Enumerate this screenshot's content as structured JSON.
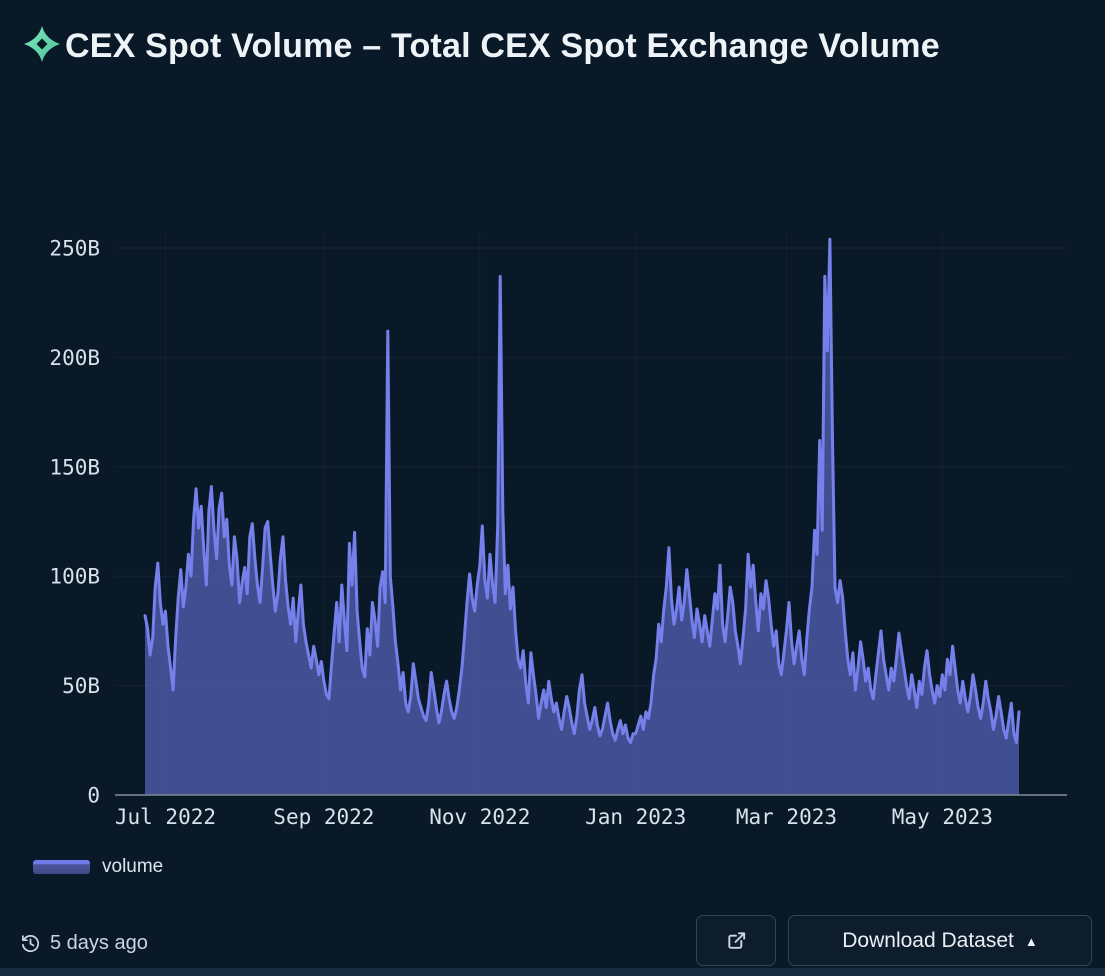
{
  "header": {
    "title": "CEX Spot Volume – Total CEX Spot Exchange Volume",
    "icon": "artemis-star-icon"
  },
  "colors": {
    "background": "#0a1928",
    "line": "#7680ea",
    "area_fill": "rgba(112,122,232,0.55)",
    "grid": "rgba(148,163,184,0.08)",
    "axis_line": "#76808c",
    "tick_text": "#d9e1ea",
    "title_text": "#eef3f8",
    "brand_green": "#5cd6a3",
    "button_border": "#31445b"
  },
  "chart_data": {
    "type": "area",
    "title": "CEX Spot Volume – Total CEX Spot Exchange Volume",
    "xlabel": "",
    "ylabel": "",
    "unit": "billions USD",
    "grid": true,
    "legend_position": "bottom-left",
    "ylim": [
      0,
      262
    ],
    "y_axis": {
      "labels": [
        "250B",
        "200B",
        "150B",
        "100B",
        "50B",
        "0"
      ],
      "values": [
        250,
        200,
        150,
        100,
        50,
        0
      ]
    },
    "x_axis": {
      "labels": [
        "Jul 2022",
        "Sep 2022",
        "Nov 2022",
        "Jan 2023",
        "Mar 2023",
        "May 2023"
      ],
      "tick_day_offsets": [
        8,
        70,
        131,
        192,
        251,
        312
      ]
    },
    "series": [
      {
        "name": "volume",
        "start_date": "2022-06-23",
        "frequency": "daily",
        "values": [
          82,
          76,
          64,
          72,
          95,
          106,
          88,
          78,
          84,
          68,
          58,
          48,
          72,
          90,
          103,
          86,
          95,
          110,
          100,
          126,
          140,
          122,
          132,
          112,
          96,
          130,
          141,
          121,
          108,
          131,
          138,
          118,
          126,
          105,
          96,
          118,
          108,
          88,
          97,
          104,
          92,
          118,
          124,
          108,
          96,
          88,
          104,
          122,
          125,
          110,
          96,
          84,
          92,
          108,
          118,
          98,
          86,
          78,
          90,
          70,
          84,
          96,
          78,
          70,
          64,
          58,
          68,
          62,
          55,
          61,
          52,
          46,
          44,
          60,
          74,
          88,
          70,
          96,
          80,
          66,
          115,
          96,
          120,
          84,
          70,
          58,
          54,
          76,
          64,
          88,
          80,
          68,
          95,
          102,
          88,
          212,
          100,
          86,
          70,
          60,
          48,
          56,
          42,
          38,
          45,
          60,
          52,
          44,
          40,
          36,
          34,
          42,
          56,
          48,
          40,
          33,
          38,
          46,
          52,
          44,
          38,
          35,
          40,
          48,
          58,
          72,
          88,
          101,
          90,
          84,
          96,
          105,
          123,
          98,
          90,
          110,
          96,
          88,
          123,
          237,
          130,
          92,
          105,
          85,
          95,
          75,
          62,
          58,
          66,
          51,
          42,
          65,
          55,
          46,
          35,
          42,
          48,
          40,
          52,
          44,
          38,
          42,
          35,
          30,
          38,
          45,
          40,
          33,
          28,
          36,
          48,
          55,
          42,
          36,
          30,
          34,
          40,
          32,
          27,
          30,
          36,
          42,
          34,
          28,
          25,
          30,
          34,
          28,
          32,
          26,
          24,
          28,
          28,
          32,
          36,
          30,
          38,
          35,
          42,
          55,
          62,
          78,
          70,
          85,
          95,
          113,
          90,
          78,
          85,
          95,
          80,
          88,
          103,
          92,
          80,
          72,
          85,
          78,
          70,
          82,
          75,
          68,
          80,
          92,
          85,
          105,
          78,
          70,
          82,
          95,
          88,
          75,
          68,
          60,
          72,
          85,
          110,
          95,
          105,
          88,
          75,
          92,
          85,
          98,
          90,
          78,
          68,
          75,
          60,
          55,
          65,
          75,
          88,
          70,
          60,
          68,
          75,
          62,
          55,
          72,
          85,
          95,
          121,
          110,
          162,
          121,
          237,
          203,
          254,
          165,
          95,
          88,
          98,
          90,
          75,
          62,
          55,
          65,
          48,
          58,
          70,
          62,
          52,
          58,
          48,
          44,
          55,
          65,
          75,
          62,
          55,
          48,
          58,
          52,
          62,
          74,
          66,
          58,
          50,
          44,
          55,
          48,
          40,
          52,
          46,
          58,
          66,
          55,
          48,
          42,
          50,
          45,
          55,
          48,
          62,
          55,
          68,
          58,
          48,
          42,
          52,
          44,
          38,
          45,
          55,
          48,
          40,
          35,
          42,
          52,
          44,
          38,
          30,
          36,
          45,
          38,
          30,
          26,
          34,
          42,
          28,
          24,
          38
        ]
      }
    ]
  },
  "legend": {
    "label": "volume"
  },
  "footer": {
    "updated": "5 days ago",
    "updated_icon": "history-clock-icon",
    "external_link_icon": "external-link-icon",
    "download_label": "Download Dataset",
    "download_caret": "▲"
  }
}
